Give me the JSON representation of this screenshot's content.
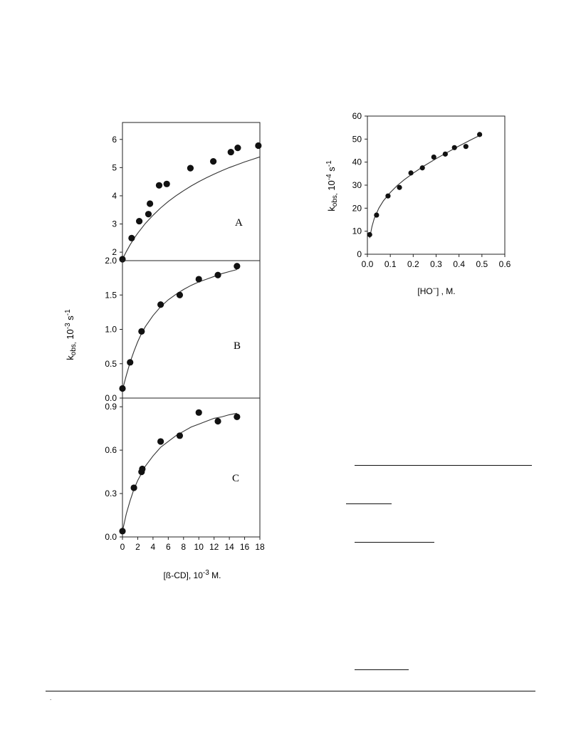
{
  "chart_data": [
    {
      "type": "scatter",
      "panel_label": "A",
      "series": [
        {
          "x": [
            0.0,
            1.2,
            2.2,
            3.4,
            3.6,
            4.8,
            5.8,
            8.9,
            11.9,
            14.2,
            15.1,
            17.8
          ],
          "y": [
            1.75,
            2.5,
            3.1,
            3.35,
            3.72,
            4.37,
            4.42,
            4.98,
            5.22,
            5.55,
            5.7,
            5.78
          ],
          "fit_x": [
            0,
            0.5,
            1,
            1.5,
            2,
            3,
            4,
            5,
            6,
            7,
            8,
            9,
            10,
            11,
            12,
            13,
            14,
            15,
            16,
            17,
            18
          ],
          "fit_y": [
            1.75,
            2.02,
            2.26,
            2.48,
            2.67,
            3.02,
            3.31,
            3.57,
            3.8,
            4.0,
            4.18,
            4.35,
            4.5,
            4.64,
            4.77,
            4.89,
            5.0,
            5.1,
            5.2,
            5.29,
            5.38
          ]
        }
      ],
      "xlim": [
        0,
        18
      ],
      "ylim": [
        1.7,
        6.6
      ],
      "y_ticks": [
        "2",
        "3",
        "4",
        "5",
        "6"
      ],
      "y_tick_values": [
        2,
        3,
        4,
        5,
        6
      ],
      "marker": "filled-circle",
      "grid": false
    },
    {
      "type": "scatter",
      "panel_label": "B",
      "series": [
        {
          "x": [
            0.0,
            1.0,
            2.5,
            5.0,
            7.5,
            10.0,
            12.5,
            15.0
          ],
          "y": [
            0.14,
            0.52,
            0.97,
            1.36,
            1.5,
            1.73,
            1.79,
            1.92
          ],
          "fit_x": [
            0,
            0.5,
            1,
            1.5,
            2,
            2.5,
            3,
            4,
            5,
            6,
            7,
            8,
            9,
            10,
            11,
            12,
            13,
            14,
            15
          ],
          "fit_y": [
            0.12,
            0.33,
            0.52,
            0.68,
            0.82,
            0.94,
            1.04,
            1.2,
            1.33,
            1.43,
            1.51,
            1.58,
            1.64,
            1.69,
            1.73,
            1.77,
            1.81,
            1.84,
            1.87
          ]
        }
      ],
      "xlim": [
        0,
        18
      ],
      "ylim": [
        0,
        2.0
      ],
      "y_ticks": [
        "0.0",
        "0.5",
        "1.0",
        "1.5",
        "2.0"
      ],
      "y_tick_values": [
        0,
        0.5,
        1.0,
        1.5,
        2.0
      ],
      "marker": "filled-circle",
      "grid": false
    },
    {
      "type": "scatter",
      "panel_label": "C",
      "series": [
        {
          "x": [
            0.0,
            1.5,
            2.5,
            2.6,
            5.0,
            7.5,
            10.0,
            12.5,
            15.0
          ],
          "y": [
            0.04,
            0.34,
            0.45,
            0.47,
            0.66,
            0.7,
            0.86,
            0.8,
            0.83
          ],
          "fit_x": [
            0,
            0.5,
            1,
            1.5,
            2,
            2.5,
            3,
            4,
            5,
            6,
            7,
            8,
            9,
            10,
            11,
            12,
            13,
            14,
            15
          ],
          "fit_y": [
            0.04,
            0.16,
            0.25,
            0.33,
            0.39,
            0.44,
            0.49,
            0.56,
            0.62,
            0.66,
            0.7,
            0.73,
            0.76,
            0.78,
            0.8,
            0.82,
            0.83,
            0.845,
            0.855
          ]
        }
      ],
      "xlim": [
        0,
        18
      ],
      "ylim": [
        0,
        0.96
      ],
      "x_ticks": [
        "0",
        "2",
        "4",
        "6",
        "8",
        "10",
        "12",
        "14",
        "16",
        "18"
      ],
      "x_tick_values": [
        0,
        2,
        4,
        6,
        8,
        10,
        12,
        14,
        16,
        18
      ],
      "y_ticks": [
        "0.0",
        "0.3",
        "0.6",
        "0.9"
      ],
      "y_tick_values": [
        0,
        0.3,
        0.6,
        0.9
      ],
      "marker": "filled-circle",
      "grid": false
    },
    {
      "type": "scatter",
      "series": [
        {
          "x": [
            0.01,
            0.04,
            0.09,
            0.14,
            0.19,
            0.24,
            0.29,
            0.34,
            0.38,
            0.43,
            0.49
          ],
          "y": [
            8.5,
            17.0,
            25.3,
            29.0,
            35.3,
            37.5,
            42.2,
            43.5,
            46.3,
            46.8,
            52.0
          ],
          "fit_x": [
            0.01,
            0.02,
            0.03,
            0.05,
            0.07,
            0.1,
            0.13,
            0.16,
            0.2,
            0.25,
            0.3,
            0.35,
            0.4,
            0.45,
            0.49
          ],
          "fit_y": [
            7.0,
            12.0,
            15.5,
            20.0,
            23.2,
            26.8,
            29.8,
            32.3,
            35.2,
            38.5,
            41.5,
            44.3,
            47.0,
            49.6,
            51.6
          ]
        }
      ],
      "xlim": [
        0,
        0.6
      ],
      "ylim": [
        0,
        60
      ],
      "x_ticks": [
        "0.0",
        "0.1",
        "0.2",
        "0.3",
        "0.4",
        "0.5",
        "0.6"
      ],
      "x_tick_values": [
        0,
        0.1,
        0.2,
        0.3,
        0.4,
        0.5,
        0.6
      ],
      "y_ticks": [
        "0",
        "10",
        "20",
        "30",
        "40",
        "50",
        "60"
      ],
      "y_tick_values": [
        0,
        10,
        20,
        30,
        40,
        50,
        60
      ],
      "marker": "filled-circle",
      "grid": false
    }
  ],
  "labels": {
    "left_y_axis": "k",
    "left_y_sub": "obs,",
    "left_y_unit_base": " 10",
    "left_y_unit_exp": "-3",
    "left_y_unit_s": " s",
    "left_y_unit_exp2": "-1",
    "left_x_axis": "[ß-CD], 10",
    "left_x_exp": "-3",
    "left_x_tail": " M.",
    "right_y_axis": "k",
    "right_y_sub": "obs,",
    "right_y_unit_base": " 10",
    "right_y_unit_exp": "-4",
    "right_y_unit_s": " s",
    "right_y_unit_exp2": "-1",
    "right_x_axis": "[HO",
    "right_x_sup": "−",
    "right_x_tail": "] , M."
  },
  "footer": {
    "mark": "."
  }
}
